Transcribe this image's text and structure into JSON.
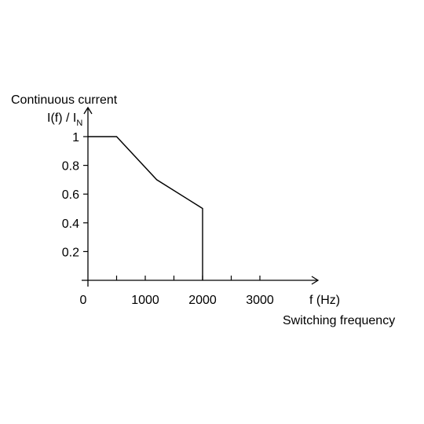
{
  "chart_data": {
    "type": "line",
    "title": "",
    "ylabel_line1": "Continuous current",
    "ylabel_line2": "I(f) / I",
    "ylabel_subscript": "N",
    "xlabel_unit": "f (Hz)",
    "xlabel": "Switching frequency",
    "x_tick_labels": [
      "0",
      "1000",
      "2000",
      "3000"
    ],
    "y_tick_labels": [
      "0.2",
      "0.4",
      "0.6",
      "0.8",
      "1"
    ],
    "x_ticks": [
      500,
      1000,
      1500,
      2000,
      2500,
      3000
    ],
    "y_ticks": [
      0.2,
      0.4,
      0.6,
      0.8,
      1
    ],
    "xlim": [
      0,
      4000
    ],
    "ylim": [
      0,
      1.1
    ],
    "grid": false,
    "series": [
      {
        "x": [
          0,
          500,
          1200,
          2000,
          2000
        ],
        "y": [
          1,
          1,
          0.7,
          0.5,
          0
        ]
      }
    ],
    "line_color": "#000000"
  }
}
